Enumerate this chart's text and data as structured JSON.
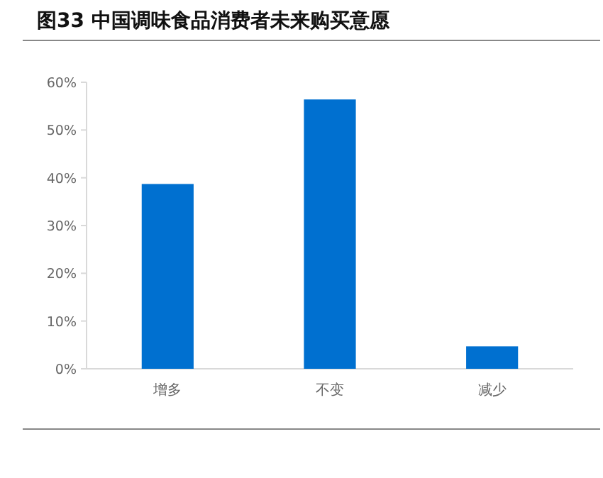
{
  "chart_data": {
    "type": "bar",
    "title": "图33 中国调味食品消费者未来购买意愿",
    "categories": [
      "增多",
      "不变",
      "减少"
    ],
    "values": [
      38.7,
      56.4,
      4.7
    ],
    "color": "#0070d0",
    "ylim": [
      0,
      60
    ],
    "yticks": [
      {
        "value": 0,
        "label": "0%"
      },
      {
        "value": 10,
        "label": "10%"
      },
      {
        "value": 20,
        "label": "20%"
      },
      {
        "value": 30,
        "label": "30%"
      },
      {
        "value": 40,
        "label": "40%"
      },
      {
        "value": 50,
        "label": "50%"
      },
      {
        "value": 60,
        "label": "60%"
      }
    ],
    "grid": false
  }
}
